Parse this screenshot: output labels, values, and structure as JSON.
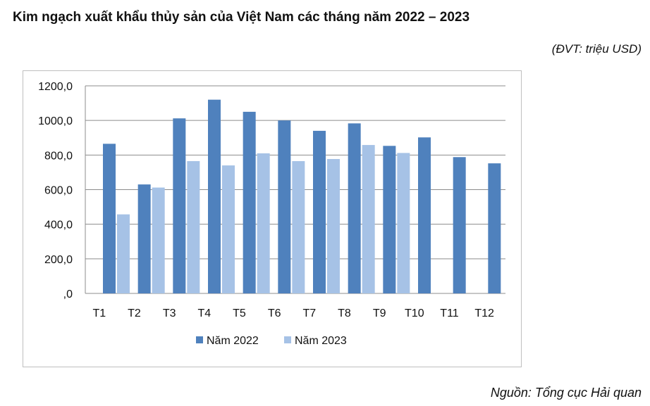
{
  "title": "Kim ngạch xuất khẩu thủy sản của Việt Nam các tháng năm 2022 – 2023",
  "unit": "(ĐVT: triệu USD)",
  "source": "Nguồn: Tổng cục Hải quan",
  "chart_data": {
    "type": "bar",
    "categories": [
      "T1",
      "T2",
      "T3",
      "T4",
      "T5",
      "T6",
      "T7",
      "T8",
      "T9",
      "T10",
      "T11",
      "T12"
    ],
    "series": [
      {
        "name": "Năm 2022",
        "color": "#4f81bd",
        "values": [
          865,
          630,
          1012,
          1120,
          1050,
          1000,
          940,
          983,
          853,
          902,
          788,
          752
        ]
      },
      {
        "name": "Năm 2023",
        "color": "#a6c2e6",
        "values": [
          457,
          612,
          765,
          740,
          810,
          765,
          777,
          858,
          812,
          null,
          null,
          null
        ]
      }
    ],
    "y_ticks": [
      ",0",
      "200,0",
      "400,0",
      "600,0",
      "800,0",
      "1000,0",
      "1200,0"
    ],
    "ylim": [
      0,
      1200
    ],
    "grid": true,
    "legend_position": "bottom"
  }
}
